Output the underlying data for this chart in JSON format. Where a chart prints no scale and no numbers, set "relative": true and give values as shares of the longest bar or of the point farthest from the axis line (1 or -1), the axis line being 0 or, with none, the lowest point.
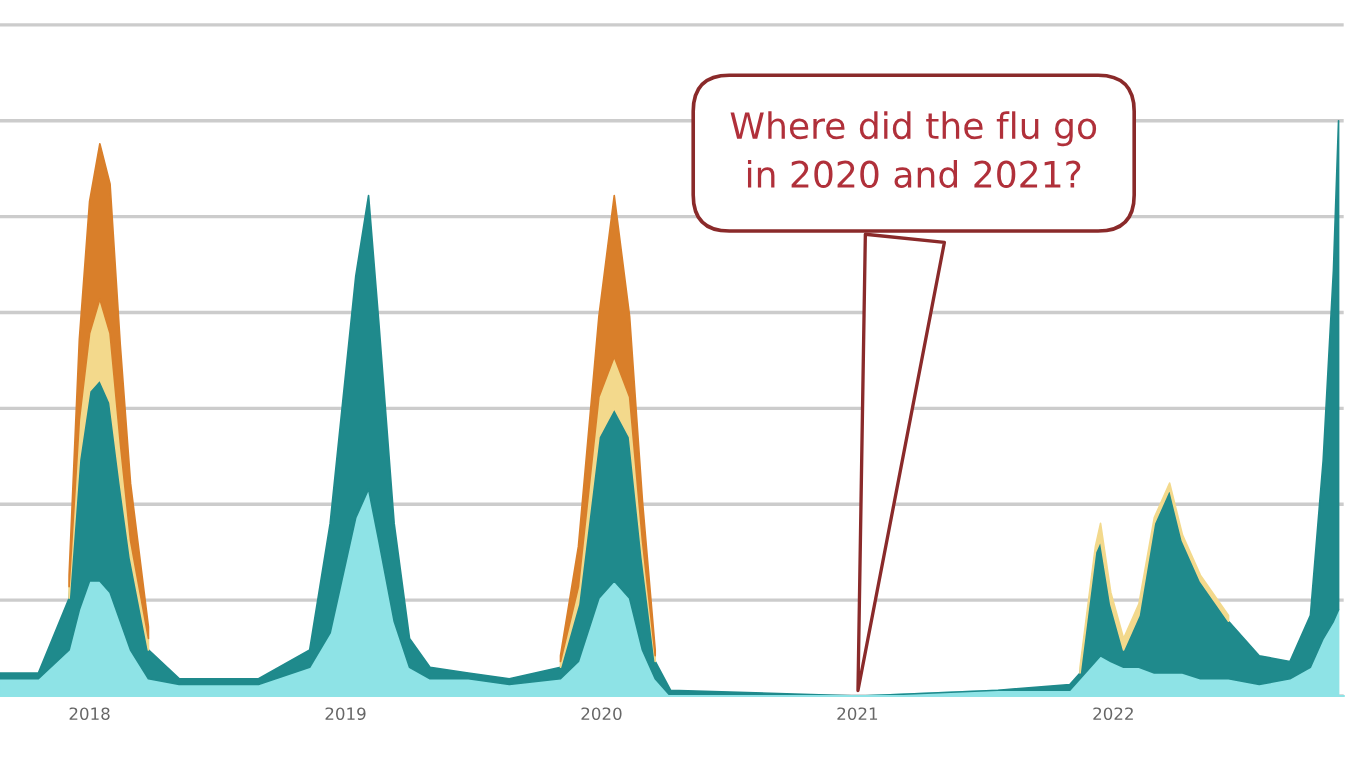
{
  "chart_data": {
    "type": "area",
    "stacked": true,
    "relative": true,
    "x": [
      2017.65,
      2017.8,
      2017.92,
      2017.96,
      2018.0,
      2018.04,
      2018.08,
      2018.12,
      2018.16,
      2018.23,
      2018.35,
      2018.66,
      2018.86,
      2018.94,
      2019.04,
      2019.09,
      2019.13,
      2019.19,
      2019.25,
      2019.33,
      2019.48,
      2019.64,
      2019.84,
      2019.91,
      2019.99,
      2020.05,
      2020.11,
      2020.16,
      2020.21,
      2020.27,
      2021.01,
      2021.55,
      2021.83,
      2021.87,
      2021.93,
      2021.95,
      2021.99,
      2022.04,
      2022.1,
      2022.16,
      2022.22,
      2022.27,
      2022.34,
      2022.45,
      2022.57,
      2022.69,
      2022.77,
      2022.82,
      2022.86,
      2022.88
    ],
    "series": [
      {
        "color": "#8ee3e6",
        "values": [
          0.03,
          0.03,
          0.08,
          0.15,
          0.2,
          0.2,
          0.18,
          0.13,
          0.08,
          0.03,
          0.02,
          0.02,
          0.05,
          0.11,
          0.31,
          0.36,
          0.27,
          0.13,
          0.05,
          0.03,
          0.03,
          0.02,
          0.03,
          0.06,
          0.17,
          0.2,
          0.17,
          0.08,
          0.03,
          0.0,
          0.0,
          0.01,
          0.01,
          0.03,
          0.06,
          0.07,
          0.06,
          0.05,
          0.05,
          0.04,
          0.04,
          0.04,
          0.03,
          0.03,
          0.02,
          0.03,
          0.05,
          0.1,
          0.13,
          0.15
        ]
      },
      {
        "color": "#1f8a8c",
        "values": [
          0.01,
          0.01,
          0.09,
          0.26,
          0.33,
          0.35,
          0.33,
          0.24,
          0.16,
          0.05,
          0.01,
          0.01,
          0.03,
          0.19,
          0.42,
          0.51,
          0.38,
          0.17,
          0.05,
          0.02,
          0.01,
          0.01,
          0.02,
          0.1,
          0.28,
          0.3,
          0.28,
          0.16,
          0.03,
          0.01,
          0.0,
          0.0,
          0.01,
          0.01,
          0.19,
          0.2,
          0.1,
          0.03,
          0.09,
          0.26,
          0.32,
          0.23,
          0.17,
          0.1,
          0.05,
          0.03,
          0.09,
          0.31,
          0.61,
          0.85
        ]
      },
      {
        "color": "#f3d98c",
        "values": [
          null,
          null,
          0.02,
          0.07,
          0.1,
          0.14,
          0.12,
          0.07,
          0.03,
          0.02,
          null,
          null,
          null,
          null,
          null,
          null,
          null,
          null,
          null,
          null,
          null,
          null,
          0.01,
          0.03,
          0.07,
          0.09,
          0.07,
          0.03,
          0.01,
          null,
          null,
          null,
          null,
          0.01,
          0.01,
          0.03,
          0.02,
          0.02,
          0.02,
          0.01,
          0.01,
          0.01,
          0.01,
          0.01,
          null,
          null,
          null,
          null,
          null,
          null
        ]
      },
      {
        "color": "#d97f2a",
        "values": [
          null,
          null,
          0.02,
          0.14,
          0.23,
          0.27,
          0.26,
          0.17,
          0.1,
          0.02,
          null,
          null,
          null,
          null,
          null,
          null,
          null,
          null,
          null,
          null,
          null,
          null,
          0.01,
          0.07,
          0.14,
          0.28,
          0.14,
          0.07,
          0.01,
          null,
          null,
          null,
          null,
          null,
          null,
          null,
          null,
          null,
          null,
          null,
          null,
          null,
          null,
          null,
          null,
          null,
          null,
          null,
          null,
          null
        ]
      }
    ],
    "xlim": [
      2017.65,
      2022.9
    ],
    "xticks": [
      2018,
      2019,
      2020,
      2021,
      2022
    ],
    "grid": "y",
    "annotations": [
      {
        "text": "Where did the flu go\nin 2020 and 2021?",
        "x": 2021,
        "y": 0
      }
    ]
  }
}
